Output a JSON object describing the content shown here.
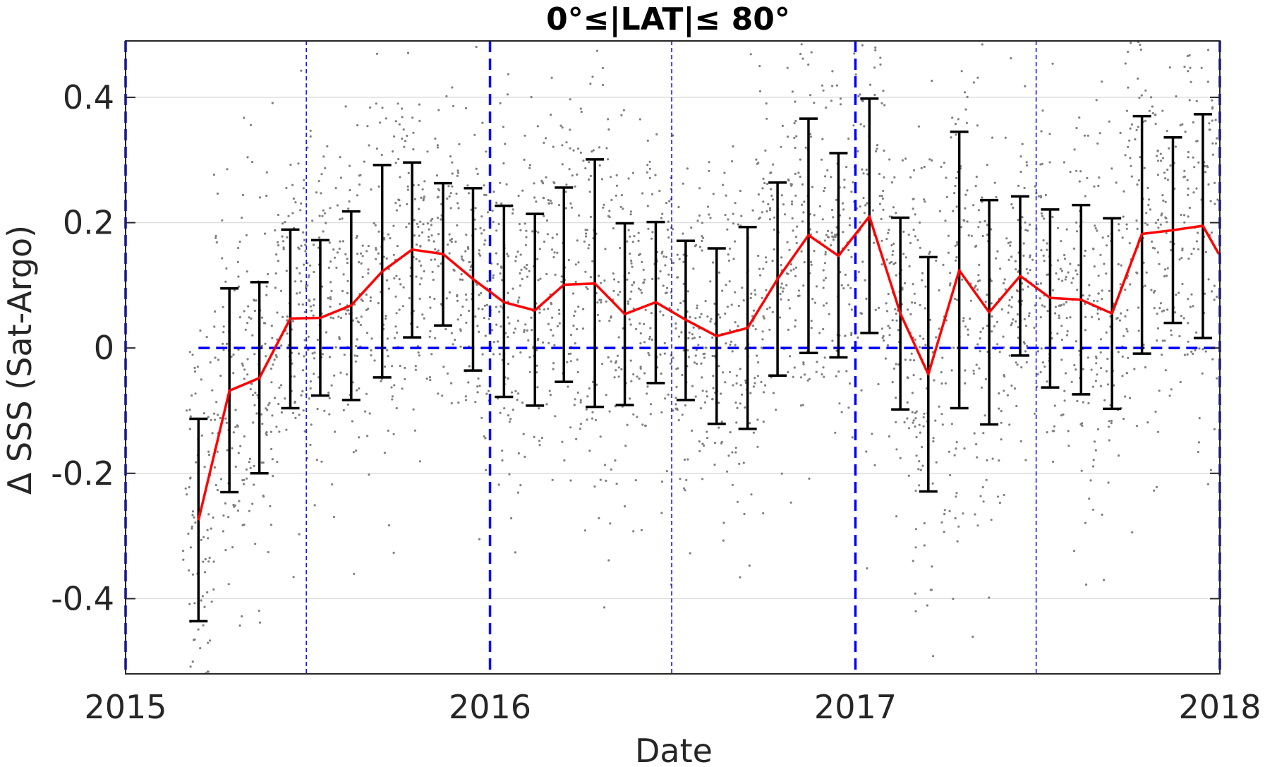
{
  "chart_data": {
    "type": "scatter",
    "title": "0°≤|LAT|≤ 80°",
    "xlabel": "Date",
    "ylabel": "Δ SSS (Sat-Argo)",
    "xlim": [
      "2015-01-01",
      "2018-01-01"
    ],
    "ylim": [
      -0.52,
      0.49
    ],
    "x_ticks": [
      "2015",
      "2016",
      "2017",
      "2018"
    ],
    "y_ticks": [
      0.4,
      0.2,
      0,
      -0.2,
      -0.4
    ],
    "y_tick_labels": [
      "0.4",
      "0.2",
      "0",
      "-0.2",
      "-0.4"
    ],
    "grid": "horizontal",
    "colors": {
      "mean_line": "#ff0000",
      "error_bars": "#000000",
      "scatter": "#808080",
      "reference_lines": "#0000ff",
      "grid": "#dddddd"
    },
    "reference_lines": {
      "horizontal_y": 0,
      "year_boundaries": [
        "2015-01-01",
        "2016-01-01",
        "2017-01-01",
        "2018-01-01"
      ],
      "mid_year": [
        "2015-07-01",
        "2016-07-01",
        "2017-07-01"
      ]
    },
    "series": [
      {
        "kind": "monthly_mean_with_std",
        "x": [
          "2015-03",
          "2015-04",
          "2015-05",
          "2015-06",
          "2015-07",
          "2015-08",
          "2015-09",
          "2015-10",
          "2015-11",
          "2015-12",
          "2016-01",
          "2016-02",
          "2016-03",
          "2016-04",
          "2016-05",
          "2016-06",
          "2016-07",
          "2016-08",
          "2016-09",
          "2016-10",
          "2016-11",
          "2016-12",
          "2017-01",
          "2017-02",
          "2017-03",
          "2017-04",
          "2017-05",
          "2017-06",
          "2017-07",
          "2017-08",
          "2017-09",
          "2017-10",
          "2017-11",
          "2017-12"
        ],
        "mean": [
          -0.275,
          -0.068,
          -0.048,
          0.047,
          0.048,
          0.068,
          0.122,
          0.157,
          0.15,
          0.11,
          0.073,
          0.06,
          0.101,
          0.103,
          0.054,
          0.073,
          0.045,
          0.019,
          0.032,
          0.11,
          0.18,
          0.147,
          0.21,
          0.055,
          -0.042,
          0.124,
          0.057,
          0.115,
          0.08,
          0.077,
          0.055,
          0.182,
          0.188,
          0.195
        ],
        "upper": [
          -0.113,
          0.095,
          0.105,
          0.189,
          0.172,
          0.218,
          0.292,
          0.296,
          0.263,
          0.255,
          0.227,
          0.214,
          0.256,
          0.301,
          0.199,
          0.201,
          0.171,
          0.159,
          0.193,
          0.264,
          0.366,
          0.311,
          0.398,
          0.208,
          0.145,
          0.345,
          0.236,
          0.242,
          0.221,
          0.228,
          0.207,
          0.37,
          0.336,
          0.373
        ],
        "lower": [
          -0.436,
          -0.23,
          -0.2,
          -0.096,
          -0.076,
          -0.083,
          -0.047,
          0.017,
          0.036,
          -0.036,
          -0.078,
          -0.092,
          -0.054,
          -0.094,
          -0.091,
          -0.056,
          -0.083,
          -0.121,
          -0.129,
          -0.044,
          -0.008,
          -0.015,
          0.024,
          -0.098,
          -0.229,
          -0.096,
          -0.122,
          -0.012,
          -0.063,
          -0.074,
          -0.097,
          -0.009,
          0.04,
          0.016
        ]
      }
    ],
    "last_mean": {
      "x": "2017-12-31",
      "y": 0.15
    }
  }
}
